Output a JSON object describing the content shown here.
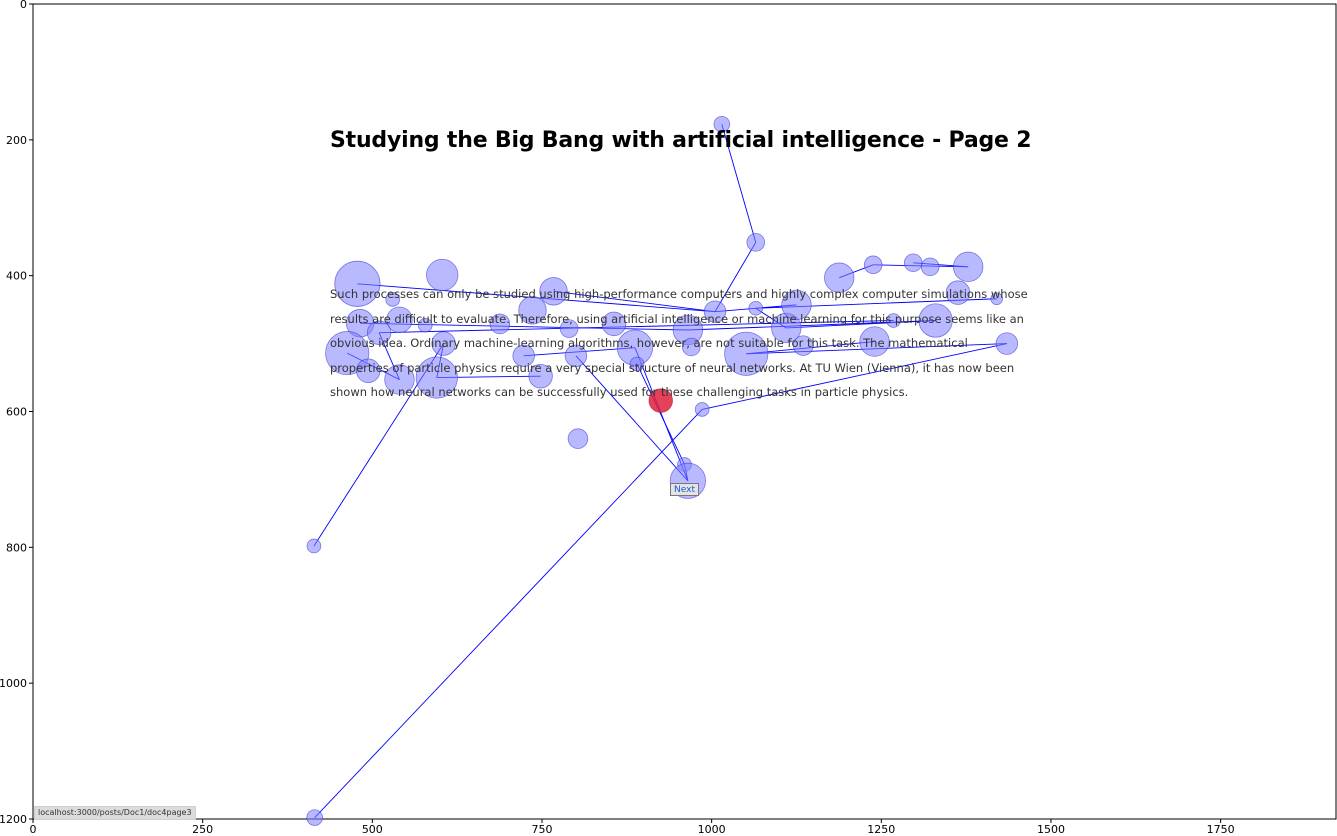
{
  "page": {
    "title": "Studying the Big Bang with artificial intelligence - Page 2",
    "body": "Such processes can only be studied using high-performance computers and highly complex computer simulations whose results are difficult to evaluate. Therefore, using artificial intelligence or machine learning for this purpose seems like an obvious idea. Ordinary machine-learning algorithms, however, are not suitable for this task. The mathematical properties of particle physics require a very special structure of neural networks. At TU Wien (Vienna), it has now been shown how neural networks can be successfully used for these challenging tasks in particle physics.",
    "next_label": "Next",
    "status_url": "localhost:3000/posts/Doc1/doc4page3"
  },
  "colors": {
    "fixation_fill": "#8080ff",
    "fixation_stroke": "#3333cc",
    "scanpath_line": "#0000ff",
    "last_fixation": "#e0203c"
  },
  "chart_data": {
    "type": "scatter",
    "title": "",
    "xlabel": "",
    "ylabel": "",
    "xlim": [
      0,
      1920
    ],
    "ylim": [
      1200,
      0
    ],
    "x_ticks": [
      0,
      250,
      500,
      750,
      1000,
      1250,
      1500,
      1750
    ],
    "y_ticks": [
      0,
      200,
      400,
      600,
      800,
      1000,
      1200
    ],
    "grid": false,
    "series": [
      {
        "points": [
          {
            "x": 1015,
            "y": 177,
            "r": 8
          },
          {
            "x": 1065,
            "y": 351,
            "r": 9
          },
          {
            "x": 1005,
            "y": 453,
            "r": 11
          },
          {
            "x": 767,
            "y": 423,
            "r": 14
          },
          {
            "x": 478,
            "y": 412,
            "r": 23
          },
          {
            "x": 482,
            "y": 470,
            "r": 14
          },
          {
            "x": 540,
            "y": 465,
            "r": 13
          },
          {
            "x": 578,
            "y": 473,
            "r": 7
          },
          {
            "x": 688,
            "y": 471,
            "r": 10
          },
          {
            "x": 790,
            "y": 478,
            "r": 9
          },
          {
            "x": 856,
            "y": 471,
            "r": 12
          },
          {
            "x": 965,
            "y": 480,
            "r": 15
          },
          {
            "x": 1110,
            "y": 477,
            "r": 15
          },
          {
            "x": 1330,
            "y": 466,
            "r": 17
          },
          {
            "x": 1420,
            "y": 434,
            "r": 6
          },
          {
            "x": 1363,
            "y": 425,
            "r": 12
          },
          {
            "x": 1125,
            "y": 443,
            "r": 15
          },
          {
            "x": 1065,
            "y": 448,
            "r": 7
          },
          {
            "x": 1268,
            "y": 466,
            "r": 7
          },
          {
            "x": 1240,
            "y": 497,
            "r": 15
          },
          {
            "x": 1435,
            "y": 500,
            "r": 11
          },
          {
            "x": 1051,
            "y": 515,
            "r": 22
          },
          {
            "x": 1135,
            "y": 503,
            "r": 10
          },
          {
            "x": 986,
            "y": 597,
            "r": 7
          },
          {
            "x": 415,
            "y": 1198,
            "r": 8
          },
          {
            "x": 603,
            "y": 399,
            "r": 16
          },
          {
            "x": 736,
            "y": 451,
            "r": 14
          },
          {
            "x": 530,
            "y": 435,
            "r": 7
          },
          {
            "x": 510,
            "y": 484,
            "r": 12
          },
          {
            "x": 540,
            "y": 553,
            "r": 15
          },
          {
            "x": 463,
            "y": 514,
            "r": 22
          },
          {
            "x": 494,
            "y": 540,
            "r": 12
          },
          {
            "x": 595,
            "y": 550,
            "r": 21
          },
          {
            "x": 748,
            "y": 548,
            "r": 12
          },
          {
            "x": 723,
            "y": 518,
            "r": 11
          },
          {
            "x": 800,
            "y": 518,
            "r": 11
          },
          {
            "x": 887,
            "y": 506,
            "r": 18
          },
          {
            "x": 890,
            "y": 530,
            "r": 7
          },
          {
            "x": 970,
            "y": 505,
            "r": 9
          },
          {
            "x": 960,
            "y": 678,
            "r": 7
          },
          {
            "x": 965,
            "y": 702,
            "r": 18
          },
          {
            "x": 605,
            "y": 500,
            "r": 12
          },
          {
            "x": 414,
            "y": 798,
            "r": 7
          },
          {
            "x": 803,
            "y": 640,
            "r": 10
          },
          {
            "x": 1188,
            "y": 403,
            "r": 15
          },
          {
            "x": 1238,
            "y": 384,
            "r": 9
          },
          {
            "x": 1297,
            "y": 381,
            "r": 9
          },
          {
            "x": 1322,
            "y": 387,
            "r": 9
          },
          {
            "x": 1378,
            "y": 387,
            "r": 15
          },
          {
            "x": 925,
            "y": 584,
            "r": 12
          }
        ],
        "path_segments": [
          [
            1015,
            177,
            1065,
            351
          ],
          [
            1065,
            351,
            1005,
            453
          ],
          [
            1005,
            453,
            767,
            423
          ],
          [
            478,
            412,
            1005,
            453
          ],
          [
            482,
            470,
            965,
            480
          ],
          [
            965,
            480,
            1330,
            466
          ],
          [
            1330,
            466,
            1110,
            477
          ],
          [
            1110,
            477,
            1065,
            448
          ],
          [
            1065,
            448,
            1420,
            434
          ],
          [
            1125,
            443,
            1005,
            453
          ],
          [
            1240,
            497,
            1051,
            515
          ],
          [
            1051,
            515,
            1435,
            500
          ],
          [
            1435,
            500,
            986,
            597
          ],
          [
            986,
            597,
            415,
            1198
          ],
          [
            463,
            514,
            540,
            553
          ],
          [
            540,
            553,
            510,
            484
          ],
          [
            510,
            484,
            1268,
            466
          ],
          [
            595,
            550,
            748,
            548
          ],
          [
            595,
            550,
            605,
            500
          ],
          [
            605,
            500,
            414,
            798
          ],
          [
            723,
            518,
            887,
            506
          ],
          [
            887,
            506,
            965,
            702
          ],
          [
            800,
            518,
            965,
            702
          ],
          [
            965,
            702,
            960,
            678
          ],
          [
            960,
            678,
            890,
            530
          ],
          [
            1188,
            403,
            1238,
            384
          ],
          [
            1238,
            384,
            1378,
            387
          ],
          [
            1297,
            381,
            1378,
            387
          ]
        ]
      }
    ]
  }
}
